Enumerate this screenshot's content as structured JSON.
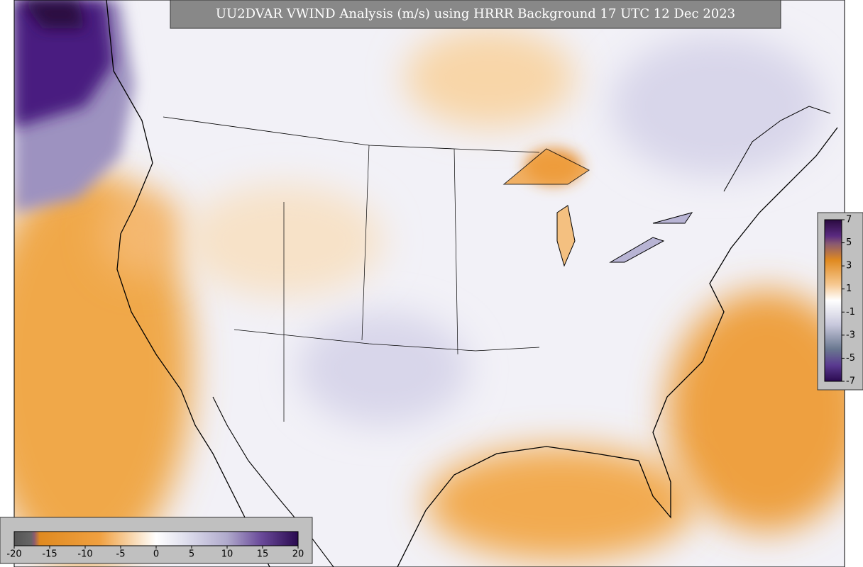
{
  "title": "UU2DVAR VWIND Analysis (m/s) using HRRR Background 17 UTC 12 Dec 2023",
  "colorbar_vertical": {
    "labels": [
      7,
      5,
      3,
      1,
      -1,
      -3,
      -5,
      -7
    ]
  },
  "colorbar_horizontal": {
    "labels": [
      -20,
      -15,
      -10,
      -5,
      0,
      5,
      10,
      15,
      20
    ]
  }
}
